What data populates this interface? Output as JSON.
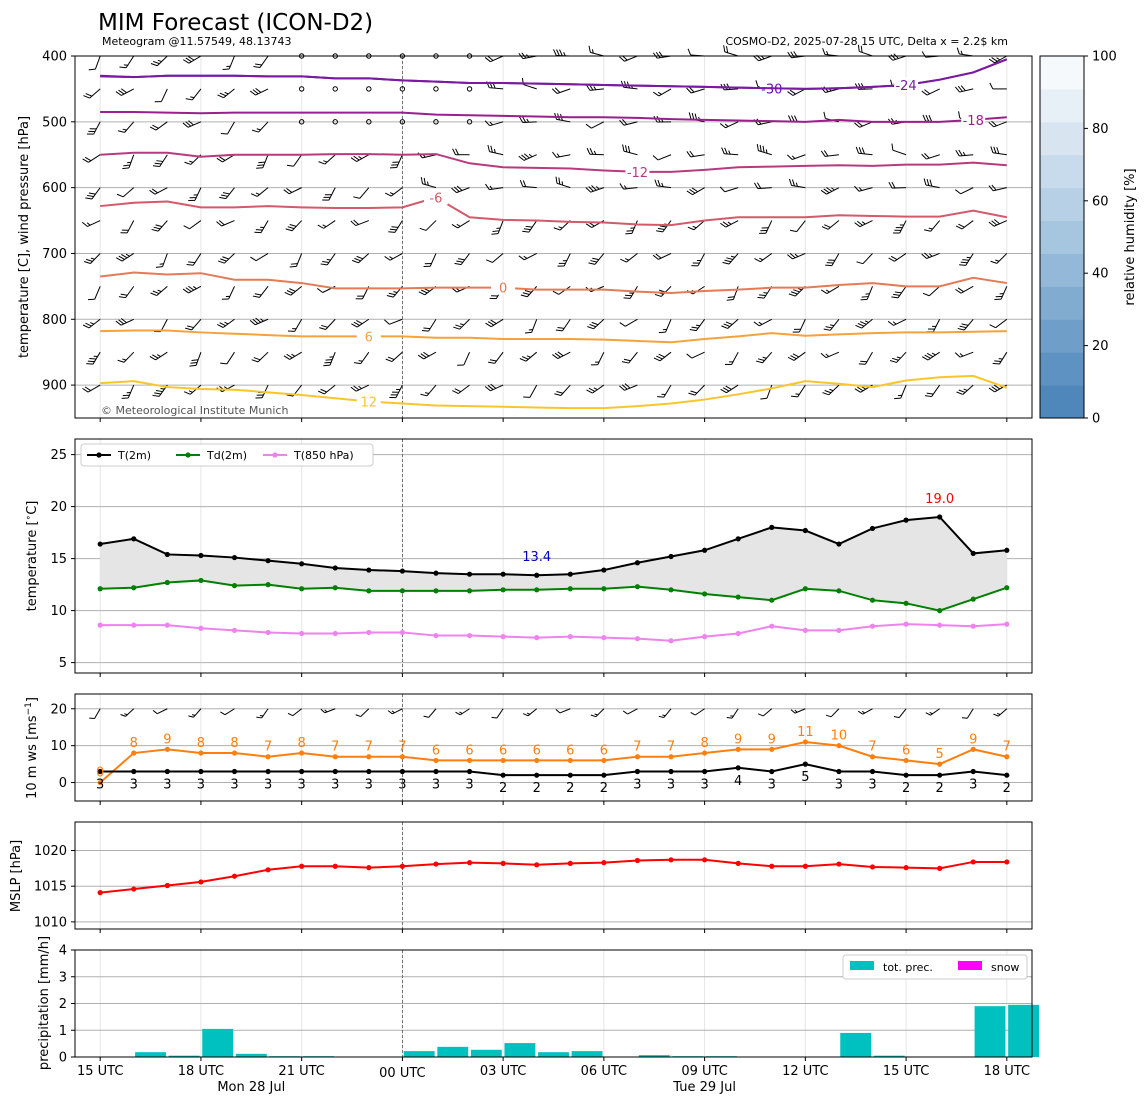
{
  "header": {
    "title": "MIM Forecast (ICON-D2)",
    "location": "Meteogram @11.57549, 48.13743",
    "model_info": "COSMO-D2, 2025-07-28 15 UTC, Delta x = 2.2$ km",
    "copyright": "© Meteorological Institute Munich"
  },
  "time_axis": {
    "ticks": [
      "15 UTC",
      "18 UTC",
      "21 UTC",
      "00 UTC",
      "03 UTC",
      "06 UTC",
      "09 UTC",
      "12 UTC",
      "15 UTC",
      "18 UTC"
    ],
    "tick_hours": [
      0,
      3,
      6,
      9,
      12,
      15,
      18,
      21,
      24,
      27
    ],
    "day_labels": [
      "Mon 28 Jul",
      "Tue 29 Jul"
    ],
    "day_label_hours": [
      4.5,
      18
    ],
    "range_hours": [
      -0.75,
      27.75
    ],
    "midnight_hour": 9,
    "hours": [
      0,
      1,
      2,
      3,
      4,
      5,
      6,
      7,
      8,
      9,
      10,
      11,
      12,
      13,
      14,
      15,
      16,
      17,
      18,
      19,
      20,
      21,
      22,
      23,
      24,
      25,
      26,
      27
    ]
  },
  "colors": {
    "t2m": "#000000",
    "td2m": "#008000",
    "t850": "#ee82ee",
    "ws": "#ff7f0e",
    "mslp": "#ff0000",
    "precip": "#00c0c0",
    "snow": "#ff00ff",
    "annot_max": "#ff0000",
    "annot_min": "#0000cc",
    "fill": "#e5e5e5"
  },
  "chart_data": [
    {
      "type": "line",
      "id": "upper-air",
      "ylabel": "temperature [C], wind pressure [hPa]",
      "ylim": [
        950,
        400
      ],
      "yticks": [
        400,
        500,
        600,
        700,
        800,
        900
      ],
      "grid": true,
      "colorbar": {
        "label": "relative humidity [%]",
        "ticks": [
          0,
          20,
          40,
          60,
          80,
          100
        ],
        "range": [
          0,
          100
        ]
      },
      "contours": [
        {
          "label": "-30",
          "color": "#6a0dad",
          "label_hour": 20,
          "pressure": [
            430,
            432,
            430,
            430,
            430,
            431,
            431,
            434,
            434,
            437,
            439,
            441,
            441,
            442,
            443,
            444,
            445,
            446,
            447,
            448,
            449,
            450,
            449,
            447,
            444,
            436,
            425,
            405
          ]
        },
        {
          "label": "-24",
          "color": "#7a1aa0",
          "label_hour": 24,
          "pressure": [
            431,
            432,
            430,
            430,
            430,
            431,
            431,
            434,
            434,
            437,
            439,
            441,
            441,
            442,
            443,
            444,
            445,
            446,
            447,
            448,
            449,
            450,
            449,
            447,
            444,
            436,
            425,
            405
          ]
        },
        {
          "label": "-18",
          "color": "#9a1f8e",
          "label_hour": 26,
          "pressure": [
            485,
            485,
            486,
            487,
            486,
            486,
            486,
            486,
            486,
            486,
            489,
            490,
            491,
            492,
            493,
            493,
            494,
            496,
            497,
            498,
            499,
            500,
            497,
            500,
            500,
            500,
            497,
            493
          ]
        },
        {
          "label": "-12",
          "color": "#b83a7e",
          "label_hour": 16,
          "pressure": [
            550,
            547,
            547,
            553,
            550,
            550,
            550,
            549,
            549,
            550,
            549,
            563,
            569,
            570,
            571,
            574,
            576,
            576,
            573,
            569,
            568,
            567,
            566,
            567,
            565,
            565,
            562,
            566
          ]
        },
        {
          "label": "-6",
          "color": "#d25a6a",
          "label_hour": 10,
          "pressure": [
            628,
            623,
            621,
            630,
            630,
            628,
            630,
            631,
            631,
            630,
            615,
            645,
            649,
            650,
            652,
            653,
            656,
            657,
            650,
            645,
            645,
            645,
            642,
            643,
            644,
            644,
            635,
            645
          ]
        },
        {
          "label": "0",
          "color": "#e57a55",
          "label_hour": 12,
          "pressure": [
            735,
            729,
            732,
            730,
            740,
            740,
            745,
            753,
            753,
            753,
            752,
            752,
            752,
            755,
            755,
            755,
            758,
            760,
            757,
            755,
            752,
            752,
            748,
            745,
            750,
            750,
            737,
            745
          ]
        },
        {
          "label": "6",
          "color": "#f5a23c",
          "label_hour": 8,
          "pressure": [
            818,
            817,
            817,
            820,
            822,
            824,
            826,
            826,
            826,
            826,
            828,
            828,
            830,
            830,
            830,
            831,
            833,
            835,
            830,
            826,
            821,
            825,
            823,
            821,
            820,
            820,
            819,
            818
          ]
        },
        {
          "label": "12",
          "color": "#f8c52a",
          "label_hour": 8,
          "pressure": [
            897,
            894,
            903,
            906,
            907,
            911,
            915,
            920,
            925,
            928,
            931,
            932,
            933,
            934,
            935,
            935,
            932,
            928,
            922,
            914,
            905,
            894,
            898,
            903,
            893,
            888,
            886,
            904
          ]
        }
      ],
      "wind_levels": [
        400,
        450,
        500,
        550,
        600,
        650,
        700,
        750,
        800,
        850,
        900,
        950
      ]
    },
    {
      "type": "line",
      "id": "surface-temperature",
      "ylabel": "temperature [$^\\circ$C]",
      "ylim": [
        4,
        26.5
      ],
      "yticks": [
        5,
        10,
        15,
        20,
        25
      ],
      "grid": true,
      "legend_placement": "top-left",
      "series": [
        {
          "name": "T(2m)",
          "values": [
            16.4,
            16.9,
            15.4,
            15.3,
            15.1,
            14.8,
            14.5,
            14.1,
            13.9,
            13.8,
            13.6,
            13.5,
            13.5,
            13.4,
            13.5,
            13.9,
            14.6,
            15.2,
            15.8,
            16.9,
            18.0,
            17.7,
            16.4,
            17.9,
            18.7,
            19.0,
            15.5,
            15.8
          ]
        },
        {
          "name": "Td(2m)",
          "values": [
            12.1,
            12.2,
            12.7,
            12.9,
            12.4,
            12.5,
            12.1,
            12.2,
            11.9,
            11.9,
            11.9,
            11.9,
            12.0,
            12.0,
            12.1,
            12.1,
            12.3,
            12.0,
            11.6,
            11.3,
            11.0,
            12.1,
            11.9,
            11.0,
            10.7,
            10.0,
            11.1,
            12.2
          ]
        },
        {
          "name": "T(850 hPa)",
          "values": [
            8.6,
            8.6,
            8.6,
            8.3,
            8.1,
            7.9,
            7.8,
            7.8,
            7.9,
            7.9,
            7.6,
            7.6,
            7.5,
            7.4,
            7.5,
            7.4,
            7.3,
            7.1,
            7.5,
            7.8,
            8.5,
            8.1,
            8.1,
            8.5,
            8.7,
            8.6,
            8.5,
            8.7
          ]
        }
      ],
      "annotations": [
        {
          "text": "19.0",
          "hour": 25,
          "value": 19.0,
          "kind": "max"
        },
        {
          "text": "13.4",
          "hour": 13,
          "value": 13.4,
          "kind": "min"
        }
      ]
    },
    {
      "type": "line",
      "id": "wind-speed",
      "ylabel": "10 m ws [ms$^{-1}$]",
      "ylim": [
        -5,
        24
      ],
      "yticks": [
        0,
        10,
        20
      ],
      "grid": true,
      "barb_level": 20,
      "series": [
        {
          "name": "gust",
          "values": [
            0,
            8,
            9,
            8,
            8,
            7,
            8,
            7,
            7,
            7,
            6,
            6,
            6,
            6,
            6,
            6,
            7,
            7,
            8,
            9,
            9,
            11,
            10,
            7,
            6,
            5,
            9,
            7
          ]
        },
        {
          "name": "mean",
          "values": [
            3,
            3,
            3,
            3,
            3,
            3,
            3,
            3,
            3,
            3,
            3,
            3,
            2,
            2,
            2,
            2,
            3,
            3,
            3,
            4,
            3,
            5,
            3,
            3,
            2,
            2,
            3,
            2
          ]
        }
      ],
      "gust_labels": [
        "0",
        "8",
        "9",
        "8",
        "8",
        "7",
        "8",
        "7",
        "7",
        "7",
        "6",
        "6",
        "6",
        "6",
        "6",
        "6",
        "7",
        "7",
        "8",
        "9",
        "9",
        "11",
        "10",
        "7",
        "6",
        "5",
        "9",
        "7"
      ],
      "mean_labels": [
        "3",
        "3",
        "3",
        "3",
        "3",
        "3",
        "3",
        "3",
        "3",
        "3",
        "3",
        "3",
        "2",
        "2",
        "2",
        "2",
        "3",
        "3",
        "3",
        "4",
        "3",
        "5",
        "3",
        "3",
        "2",
        "2",
        "3",
        "2"
      ]
    },
    {
      "type": "line",
      "id": "mslp",
      "ylabel": "MSLP [hPa]",
      "ylim": [
        1009,
        1024
      ],
      "yticks": [
        1010,
        1015,
        1020
      ],
      "grid": true,
      "series": [
        {
          "name": "MSLP",
          "values": [
            1014.1,
            1014.6,
            1015.1,
            1015.6,
            1016.4,
            1017.3,
            1017.8,
            1017.8,
            1017.6,
            1017.8,
            1018.1,
            1018.3,
            1018.2,
            1018.0,
            1018.2,
            1018.3,
            1018.6,
            1018.7,
            1018.7,
            1018.2,
            1017.8,
            1017.8,
            1018.1,
            1017.7,
            1017.6,
            1017.5,
            1018.4,
            1018.4
          ]
        }
      ]
    },
    {
      "type": "bar",
      "id": "precipitation",
      "ylabel": "precipitation [mm/h]",
      "ylim": [
        0,
        4
      ],
      "yticks": [
        0,
        1,
        2,
        3,
        4
      ],
      "grid": true,
      "legend_placement": "top-right",
      "legend": [
        "tot. prec.",
        "snow"
      ],
      "series": [
        {
          "name": "tot. prec.",
          "values": [
            0,
            0.18,
            0.05,
            1.05,
            0.12,
            0.03,
            0.03,
            0,
            0,
            0.22,
            0.38,
            0.27,
            0.52,
            0.18,
            0.22,
            0,
            0.07,
            0.03,
            0.03,
            0,
            0,
            0,
            0.9,
            0.05,
            0,
            0,
            1.9,
            1.95
          ]
        },
        {
          "name": "snow",
          "values": [
            0,
            0,
            0,
            0,
            0,
            0,
            0,
            0,
            0,
            0,
            0,
            0,
            0,
            0,
            0,
            0,
            0,
            0,
            0,
            0,
            0,
            0,
            0,
            0,
            0,
            0,
            0,
            0
          ]
        }
      ]
    }
  ]
}
